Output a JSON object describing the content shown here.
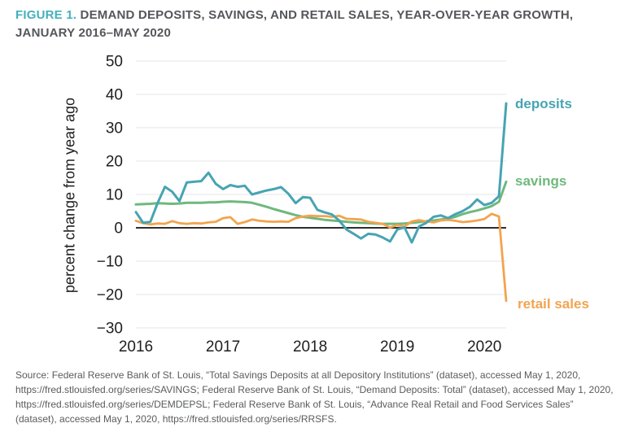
{
  "header": {
    "figure_label": "FIGURE 1.",
    "title": "DEMAND DEPOSITS, SAVINGS, AND RETAIL SALES, YEAR-OVER-YEAR GROWTH, JANUARY 2016–MAY 2020"
  },
  "colors": {
    "figure_label": "#44AFBE",
    "title_text": "#54565A",
    "tick_text": "#1E1E1E",
    "axis_label_text": "#1E1E1E",
    "gridline": "#E4E4E4",
    "zero_line": "#111111",
    "source_text": "#595B5E",
    "deposits": "#47A4B3",
    "savings": "#6FB87D",
    "retail_sales": "#F2A44F"
  },
  "chart_data": {
    "type": "line",
    "title": "Demand deposits, savings, and retail sales, year-over-year growth, January 2016–May 2020",
    "ylabel": "percent change from year ago",
    "xlabel": "",
    "ylim": [
      -30,
      50
    ],
    "y_ticks": [
      50,
      40,
      30,
      20,
      10,
      0,
      -10,
      -20,
      -30
    ],
    "y_tick_labels": [
      "50",
      "40",
      "30",
      "20",
      "10",
      "0",
      "−10",
      "−20",
      "−30"
    ],
    "x_tick_labels": [
      "2016",
      "2017",
      "2018",
      "2019",
      "2020"
    ],
    "x_tick_month_index": [
      0,
      12,
      24,
      36,
      48
    ],
    "grid": "horizontal",
    "zero_line": true,
    "legend_position": "right of line ends",
    "months": [
      "Jan 2016",
      "Feb 2016",
      "Mar 2016",
      "Apr 2016",
      "May 2016",
      "Jun 2016",
      "Jul 2016",
      "Aug 2016",
      "Sep 2016",
      "Oct 2016",
      "Nov 2016",
      "Dec 2016",
      "Jan 2017",
      "Feb 2017",
      "Mar 2017",
      "Apr 2017",
      "May 2017",
      "Jun 2017",
      "Jul 2017",
      "Aug 2017",
      "Sep 2017",
      "Oct 2017",
      "Nov 2017",
      "Dec 2017",
      "Jan 2018",
      "Feb 2018",
      "Mar 2018",
      "Apr 2018",
      "May 2018",
      "Jun 2018",
      "Jul 2018",
      "Aug 2018",
      "Sep 2018",
      "Oct 2018",
      "Nov 2018",
      "Dec 2018",
      "Jan 2019",
      "Feb 2019",
      "Mar 2019",
      "Apr 2019",
      "May 2019",
      "Jun 2019",
      "Jul 2019",
      "Aug 2019",
      "Sep 2019",
      "Oct 2019",
      "Nov 2019",
      "Dec 2019",
      "Jan 2020",
      "Feb 2020",
      "Mar 2020",
      "Apr 2020"
    ],
    "series": [
      {
        "name": "deposits",
        "color": "#47A4B3",
        "values": [
          4.7,
          1.5,
          1.8,
          7.5,
          12.3,
          10.8,
          8.0,
          13.6,
          13.8,
          14.0,
          16.5,
          13.2,
          11.6,
          12.8,
          12.3,
          12.6,
          10.0,
          10.6,
          11.2,
          11.6,
          12.2,
          10.2,
          7.4,
          9.2,
          9.0,
          5.4,
          4.6,
          4.0,
          2.2,
          -0.5,
          -1.8,
          -3.2,
          -1.8,
          -2.0,
          -2.9,
          -4.1,
          -0.5,
          0.1,
          -4.4,
          0.4,
          1.5,
          3.3,
          3.7,
          2.9,
          4.1,
          5.0,
          6.3,
          8.5,
          6.8,
          7.5,
          9.5,
          37.3
        ]
      },
      {
        "name": "savings",
        "color": "#6FB87D",
        "values": [
          7.0,
          7.1,
          7.2,
          7.4,
          7.3,
          7.2,
          7.3,
          7.5,
          7.5,
          7.5,
          7.6,
          7.6,
          7.8,
          7.9,
          7.8,
          7.7,
          7.5,
          6.9,
          6.3,
          5.6,
          5.0,
          4.4,
          3.8,
          3.3,
          3.0,
          2.7,
          2.4,
          2.2,
          2.0,
          1.8,
          1.6,
          1.5,
          1.4,
          1.3,
          1.2,
          1.2,
          1.2,
          1.3,
          1.5,
          1.7,
          2.0,
          2.2,
          2.5,
          2.8,
          3.3,
          4.1,
          4.7,
          5.2,
          5.8,
          6.5,
          7.8,
          13.8
        ]
      },
      {
        "name": "retail sales",
        "color": "#F2A44F",
        "values": [
          2.1,
          1.4,
          1.0,
          1.3,
          1.2,
          2.0,
          1.4,
          1.2,
          1.4,
          1.3,
          1.6,
          1.8,
          2.9,
          3.2,
          1.2,
          1.7,
          2.5,
          2.1,
          1.9,
          1.8,
          1.9,
          1.8,
          2.9,
          3.4,
          3.6,
          3.5,
          3.5,
          3.3,
          3.6,
          2.7,
          2.6,
          2.5,
          1.8,
          1.5,
          1.2,
          0.1,
          0.8,
          0.4,
          1.9,
          2.3,
          1.9,
          1.6,
          2.2,
          2.4,
          2.1,
          1.7,
          1.9,
          2.2,
          2.6,
          4.2,
          3.4,
          -21.9
        ]
      }
    ]
  },
  "footer": {
    "source": "Source: Federal Reserve Bank of St. Louis, “Total Savings Deposits at all Depository Institutions” (dataset), accessed May 1, 2020, https://fred.stlouisfed.org/series/SAVINGS; Federal Reserve Bank of St. Louis, “Demand Deposits: Total” (dataset), accessed May 1, 2020, https://fred.stlouisfed.org/series/DEMDEPSL; Federal Reserve Bank of St. Louis, “Advance Real Retail and Food Services Sales” (dataset), accessed May 1, 2020, https://fred.stlouisfed.org/series/RRSFS."
  }
}
